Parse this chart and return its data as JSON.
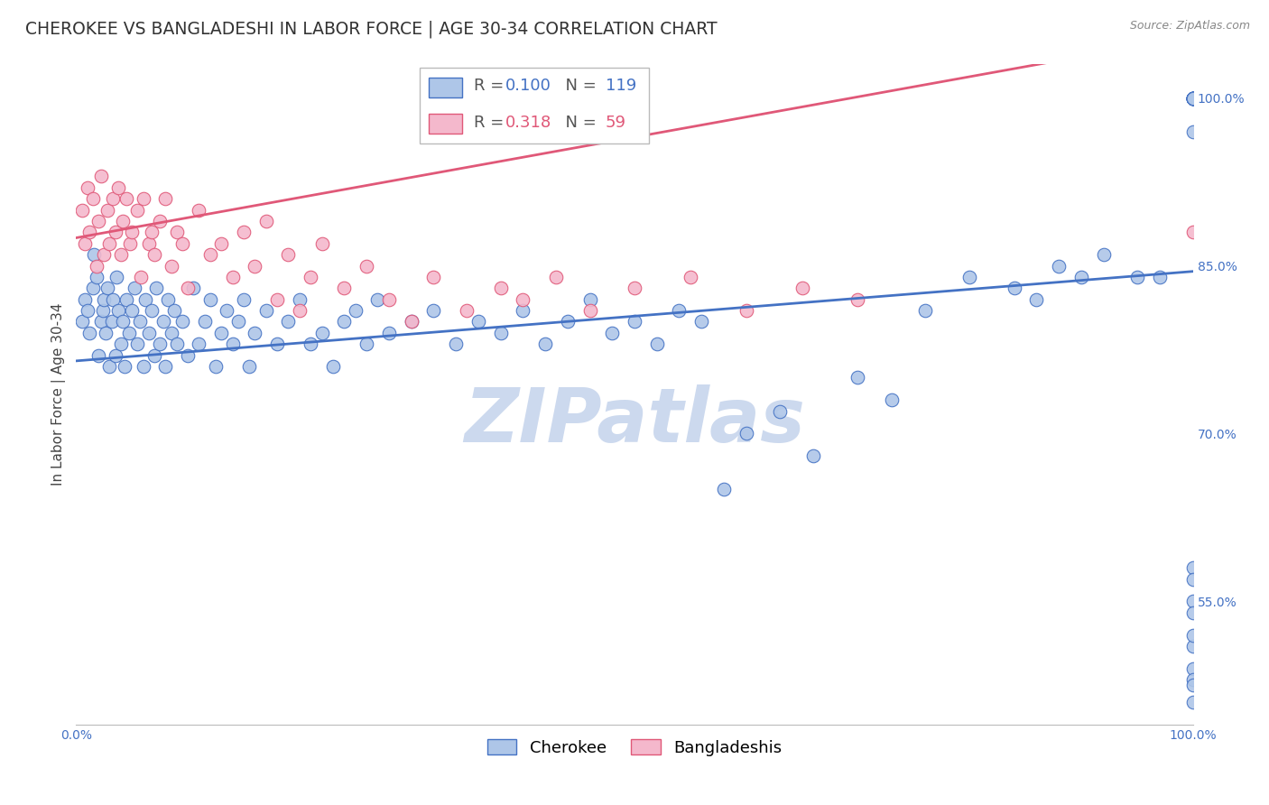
{
  "title": "CHEROKEE VS BANGLADESHI IN LABOR FORCE | AGE 30-34 CORRELATION CHART",
  "source": "Source: ZipAtlas.com",
  "ylabel": "In Labor Force | Age 30-34",
  "watermark": "ZIPatlas",
  "xlim": [
    0.0,
    1.0
  ],
  "ylim": [
    0.44,
    1.03
  ],
  "y_ticks_right": [
    0.55,
    0.7,
    0.85,
    1.0
  ],
  "y_tick_labels_right": [
    "55.0%",
    "70.0%",
    "85.0%",
    "100.0%"
  ],
  "cherokee_color": "#aec6e8",
  "bangladeshi_color": "#f4b8cc",
  "cherokee_line_color": "#4472c4",
  "bangladeshi_line_color": "#e05878",
  "legend_cherokee_R": "0.100",
  "legend_cherokee_N": "119",
  "legend_bangladeshi_R": "0.318",
  "legend_bangladeshi_N": "59",
  "cherokee_scatter_x": [
    0.005,
    0.008,
    0.01,
    0.012,
    0.015,
    0.016,
    0.018,
    0.02,
    0.022,
    0.024,
    0.025,
    0.026,
    0.028,
    0.03,
    0.032,
    0.033,
    0.035,
    0.036,
    0.038,
    0.04,
    0.042,
    0.043,
    0.045,
    0.047,
    0.05,
    0.052,
    0.055,
    0.057,
    0.06,
    0.062,
    0.065,
    0.068,
    0.07,
    0.072,
    0.075,
    0.078,
    0.08,
    0.082,
    0.085,
    0.088,
    0.09,
    0.095,
    0.1,
    0.105,
    0.11,
    0.115,
    0.12,
    0.125,
    0.13,
    0.135,
    0.14,
    0.145,
    0.15,
    0.155,
    0.16,
    0.17,
    0.18,
    0.19,
    0.2,
    0.21,
    0.22,
    0.23,
    0.24,
    0.25,
    0.26,
    0.27,
    0.28,
    0.3,
    0.32,
    0.34,
    0.36,
    0.38,
    0.4,
    0.42,
    0.44,
    0.46,
    0.48,
    0.5,
    0.52,
    0.54,
    0.56,
    0.58,
    0.6,
    0.63,
    0.66,
    0.7,
    0.73,
    0.76,
    0.8,
    0.84,
    0.86,
    0.88,
    0.9,
    0.92,
    0.95,
    0.97,
    1.0,
    1.0,
    1.0,
    1.0,
    1.0,
    1.0,
    1.0,
    1.0,
    1.0,
    1.0,
    1.0,
    1.0,
    1.0,
    1.0,
    1.0,
    1.0,
    1.0,
    1.0,
    1.0,
    1.0,
    1.0,
    1.0,
    1.0
  ],
  "cherokee_scatter_y": [
    0.8,
    0.82,
    0.81,
    0.79,
    0.83,
    0.86,
    0.84,
    0.77,
    0.8,
    0.81,
    0.82,
    0.79,
    0.83,
    0.76,
    0.8,
    0.82,
    0.77,
    0.84,
    0.81,
    0.78,
    0.8,
    0.76,
    0.82,
    0.79,
    0.81,
    0.83,
    0.78,
    0.8,
    0.76,
    0.82,
    0.79,
    0.81,
    0.77,
    0.83,
    0.78,
    0.8,
    0.76,
    0.82,
    0.79,
    0.81,
    0.78,
    0.8,
    0.77,
    0.83,
    0.78,
    0.8,
    0.82,
    0.76,
    0.79,
    0.81,
    0.78,
    0.8,
    0.82,
    0.76,
    0.79,
    0.81,
    0.78,
    0.8,
    0.82,
    0.78,
    0.79,
    0.76,
    0.8,
    0.81,
    0.78,
    0.82,
    0.79,
    0.8,
    0.81,
    0.78,
    0.8,
    0.79,
    0.81,
    0.78,
    0.8,
    0.82,
    0.79,
    0.8,
    0.78,
    0.81,
    0.8,
    0.65,
    0.7,
    0.72,
    0.68,
    0.75,
    0.73,
    0.81,
    0.84,
    0.83,
    0.82,
    0.85,
    0.84,
    0.86,
    0.84,
    0.84,
    1.0,
    1.0,
    1.0,
    1.0,
    1.0,
    1.0,
    1.0,
    1.0,
    1.0,
    1.0,
    1.0,
    1.0,
    0.97,
    0.55,
    0.58,
    0.51,
    0.54,
    0.57,
    0.46,
    0.49,
    0.48,
    0.52,
    0.475
  ],
  "bangladeshi_scatter_x": [
    0.005,
    0.008,
    0.01,
    0.012,
    0.015,
    0.018,
    0.02,
    0.022,
    0.025,
    0.028,
    0.03,
    0.033,
    0.035,
    0.038,
    0.04,
    0.042,
    0.045,
    0.048,
    0.05,
    0.055,
    0.058,
    0.06,
    0.065,
    0.068,
    0.07,
    0.075,
    0.08,
    0.085,
    0.09,
    0.095,
    0.1,
    0.11,
    0.12,
    0.13,
    0.14,
    0.15,
    0.16,
    0.17,
    0.18,
    0.19,
    0.2,
    0.21,
    0.22,
    0.24,
    0.26,
    0.28,
    0.3,
    0.32,
    0.35,
    0.38,
    0.4,
    0.43,
    0.46,
    0.5,
    0.55,
    0.6,
    0.65,
    0.7,
    1.0
  ],
  "bangladeshi_scatter_y": [
    0.9,
    0.87,
    0.92,
    0.88,
    0.91,
    0.85,
    0.89,
    0.93,
    0.86,
    0.9,
    0.87,
    0.91,
    0.88,
    0.92,
    0.86,
    0.89,
    0.91,
    0.87,
    0.88,
    0.9,
    0.84,
    0.91,
    0.87,
    0.88,
    0.86,
    0.89,
    0.91,
    0.85,
    0.88,
    0.87,
    0.83,
    0.9,
    0.86,
    0.87,
    0.84,
    0.88,
    0.85,
    0.89,
    0.82,
    0.86,
    0.81,
    0.84,
    0.87,
    0.83,
    0.85,
    0.82,
    0.8,
    0.84,
    0.81,
    0.83,
    0.82,
    0.84,
    0.81,
    0.83,
    0.84,
    0.81,
    0.83,
    0.82,
    0.88
  ],
  "background_color": "#ffffff",
  "grid_color": "#dddddd",
  "title_fontsize": 13.5,
  "axis_label_fontsize": 11,
  "tick_fontsize": 10,
  "legend_fontsize": 13,
  "source_fontsize": 9,
  "watermark_color": "#ccd9ee",
  "watermark_fontsize": 60
}
